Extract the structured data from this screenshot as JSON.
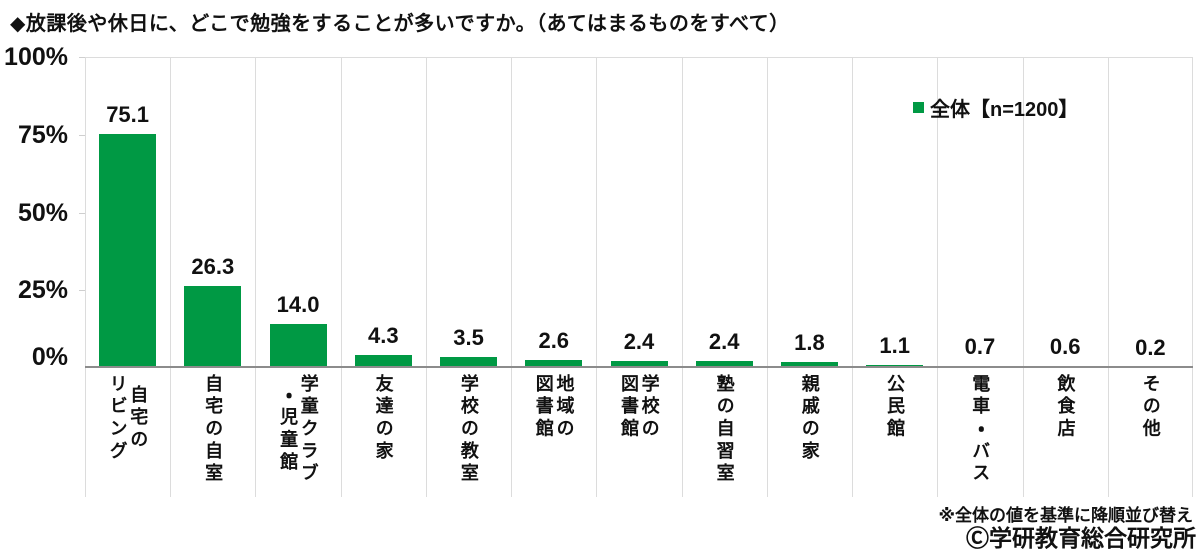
{
  "colors": {
    "bar": "#009944",
    "separator": "#dcdcdc",
    "tick": "#cfcfcf",
    "axis": "#8c8c8c",
    "text": "#111111"
  },
  "chart_data": {
    "type": "bar",
    "title": "◆放課後や休日に、どこで勉強をすることが多いですか。（あてはまるものをすべて）",
    "categories": [
      "自宅の\nリビング",
      "自宅の自室",
      "学童クラブ\n・児童館",
      "友達の家",
      "学校の教室",
      "地域の\n図書館",
      "学校の\n図書館",
      "塾の自習室",
      "親戚の家",
      "公民館",
      "電車・バス",
      "飲食店",
      "その他"
    ],
    "values": [
      75.1,
      26.3,
      14.0,
      4.3,
      3.5,
      2.6,
      2.4,
      2.4,
      1.8,
      1.1,
      0.7,
      0.6,
      0.2
    ],
    "value_labels": [
      "75.1",
      "26.3",
      "14.0",
      "4.3",
      "3.5",
      "2.6",
      "2.4",
      "2.4",
      "1.8",
      "1.1",
      "0.7",
      "0.6",
      "0.2"
    ],
    "legend_label": "全体【n=1200】",
    "legend_position": "top-right-inside",
    "xlabel": "",
    "ylabel": "",
    "ylim": [
      0,
      100
    ],
    "yticks": [
      0,
      25,
      50,
      75,
      100
    ],
    "ytick_labels": [
      "0%",
      "25%",
      "50%",
      "75%",
      "100%"
    ],
    "grid": "vertical-column-separators-only",
    "footnote": "※全体の値を基準に降順並び替え",
    "copyright": "Ⓒ学研教育総合研究所"
  }
}
